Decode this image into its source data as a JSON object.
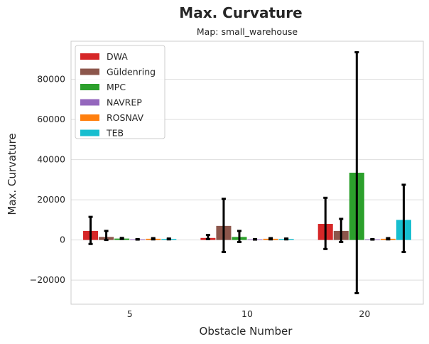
{
  "chart_data": {
    "type": "bar",
    "title": "Max. Curvature",
    "subtitle": "Map: small_warehouse",
    "xlabel": "Obstacle Number",
    "ylabel": "Max. Curvature",
    "categories": [
      "5",
      "10",
      "20"
    ],
    "ylim": [
      -32000,
      99000
    ],
    "yticks": [
      -20000,
      0,
      20000,
      40000,
      60000,
      80000
    ],
    "ytick_labels": [
      "−20000",
      "0",
      "20000",
      "40000",
      "60000",
      "80000"
    ],
    "grid": true,
    "legend_position": "top-left",
    "series": [
      {
        "name": "DWA",
        "color": "#d62728",
        "values": [
          4500,
          1000,
          8000
        ],
        "err_low": [
          -2000,
          400,
          -4500
        ],
        "err_high": [
          11500,
          2500,
          21000
        ]
      },
      {
        "name": "Güldenring",
        "color": "#8c564b",
        "values": [
          1500,
          7000,
          4500
        ],
        "err_low": [
          0,
          -6000,
          -1000
        ],
        "err_high": [
          4500,
          20500,
          10500
        ]
      },
      {
        "name": "MPC",
        "color": "#2ca02c",
        "values": [
          700,
          1500,
          33500
        ],
        "err_low": [
          500,
          -1000,
          -26500
        ],
        "err_high": [
          1000,
          4500,
          93500
        ]
      },
      {
        "name": "NAVREP",
        "color": "#9467bd",
        "values": [
          300,
          300,
          300
        ],
        "err_low": [
          200,
          200,
          200
        ],
        "err_high": [
          400,
          400,
          400
        ]
      },
      {
        "name": "ROSNAV",
        "color": "#ff7f0e",
        "values": [
          600,
          600,
          600
        ],
        "err_low": [
          300,
          300,
          300
        ],
        "err_high": [
          900,
          900,
          900
        ]
      },
      {
        "name": "TEB",
        "color": "#17becf",
        "values": [
          500,
          500,
          10000
        ],
        "err_low": [
          300,
          300,
          -6000
        ],
        "err_high": [
          700,
          700,
          27500
        ]
      }
    ]
  }
}
